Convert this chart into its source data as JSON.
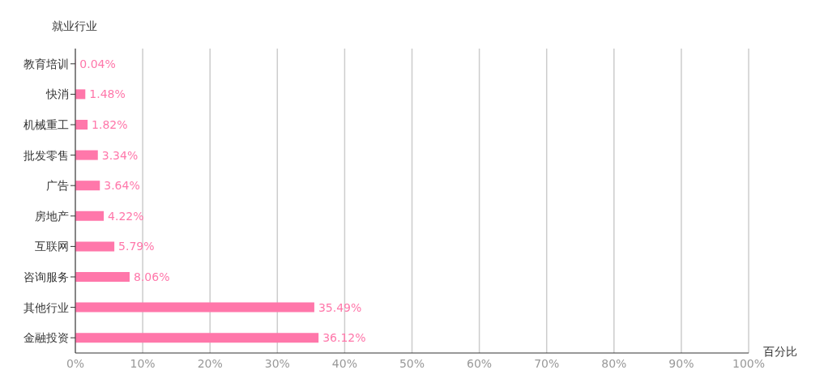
{
  "chart_data": {
    "type": "bar",
    "orientation": "horizontal",
    "ylabel": "就业行业",
    "xlabel": "百分比",
    "categories": [
      "教育培训",
      "快消",
      "机械重工",
      "批发零售",
      "广告",
      "房地产",
      "互联网",
      "咨询服务",
      "其他行业",
      "金融投资"
    ],
    "values": [
      0.04,
      1.48,
      1.82,
      3.34,
      3.64,
      4.22,
      5.79,
      8.06,
      35.49,
      36.12
    ],
    "value_labels": [
      "0.04%",
      "1.48%",
      "1.82%",
      "3.34%",
      "3.64%",
      "4.22%",
      "5.79%",
      "8.06%",
      "35.49%",
      "36.12%"
    ],
    "color": "#ff77aa",
    "xlim": [
      0,
      100
    ],
    "xticks": [
      {
        "value": 0,
        "label": "0%"
      },
      {
        "value": 10,
        "label": "10%"
      },
      {
        "value": 20,
        "label": "20%"
      },
      {
        "value": 30,
        "label": "30%"
      },
      {
        "value": 40,
        "label": "40%"
      },
      {
        "value": 50,
        "label": "50%"
      },
      {
        "value": 60,
        "label": "60%"
      },
      {
        "value": 70,
        "label": "70%"
      },
      {
        "value": 80,
        "label": "80%"
      },
      {
        "value": 90,
        "label": "90%"
      },
      {
        "value": 100,
        "label": "100%"
      }
    ],
    "grid": "x"
  }
}
